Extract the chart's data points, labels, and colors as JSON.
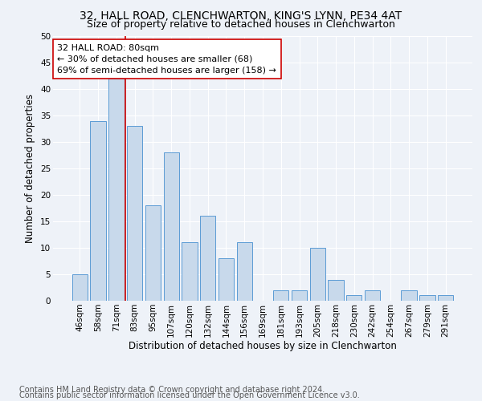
{
  "title": "32, HALL ROAD, CLENCHWARTON, KING'S LYNN, PE34 4AT",
  "subtitle": "Size of property relative to detached houses in Clenchwarton",
  "xlabel": "Distribution of detached houses by size in Clenchwarton",
  "ylabel": "Number of detached properties",
  "categories": [
    "46sqm",
    "58sqm",
    "71sqm",
    "83sqm",
    "95sqm",
    "107sqm",
    "120sqm",
    "132sqm",
    "144sqm",
    "156sqm",
    "169sqm",
    "181sqm",
    "193sqm",
    "205sqm",
    "218sqm",
    "230sqm",
    "242sqm",
    "254sqm",
    "267sqm",
    "279sqm",
    "291sqm"
  ],
  "values": [
    5,
    34,
    42,
    33,
    18,
    28,
    11,
    16,
    8,
    11,
    0,
    2,
    2,
    10,
    4,
    1,
    2,
    0,
    2,
    1,
    1
  ],
  "bar_color": "#c8d9eb",
  "bar_edge_color": "#5b9bd5",
  "vline_x": 2.5,
  "vline_color": "#cc0000",
  "annotation_line1": "32 HALL ROAD: 80sqm",
  "annotation_line2": "← 30% of detached houses are smaller (68)",
  "annotation_line3": "69% of semi-detached houses are larger (158) →",
  "annotation_box_color": "#ffffff",
  "annotation_box_edge": "#cc0000",
  "ylim": [
    0,
    50
  ],
  "yticks": [
    0,
    5,
    10,
    15,
    20,
    25,
    30,
    35,
    40,
    45,
    50
  ],
  "footer1": "Contains HM Land Registry data © Crown copyright and database right 2024.",
  "footer2": "Contains public sector information licensed under the Open Government Licence v3.0.",
  "background_color": "#eef2f8",
  "title_fontsize": 10,
  "subtitle_fontsize": 9,
  "axis_label_fontsize": 8.5,
  "tick_fontsize": 7.5,
  "annotation_fontsize": 8,
  "footer_fontsize": 7
}
